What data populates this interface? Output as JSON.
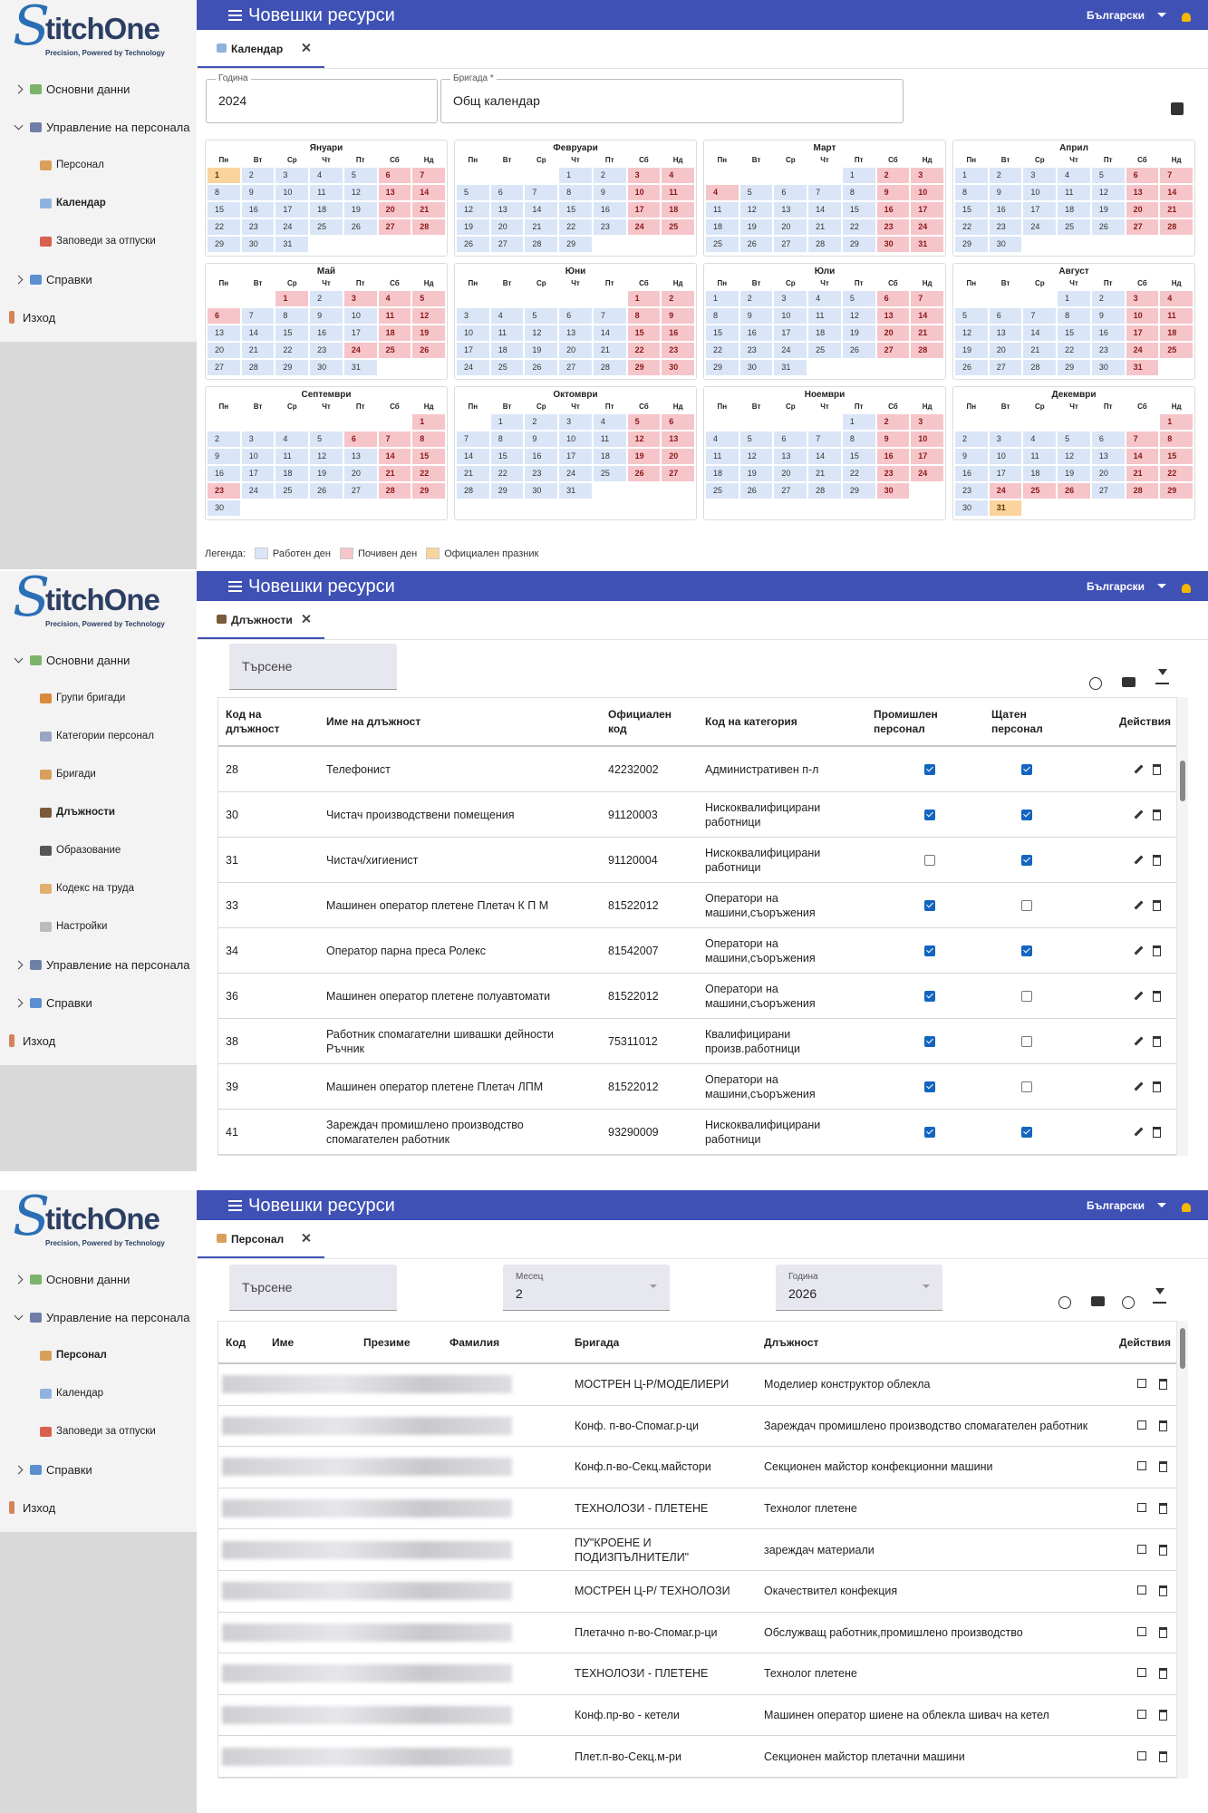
{
  "app": {
    "logo_initial": "S",
    "logo_rest": "titchOne",
    "tagline": "Precision, Powered by Technology",
    "header_title": "Човешки ресурси",
    "language": "Български",
    "search": "Търсене"
  },
  "calendar_screen": {
    "sidebar": [
      {
        "label": "Основни данни",
        "level": 0,
        "state": "collapsed",
        "active": false,
        "icon": "#7bb36b"
      },
      {
        "label": "Управление на персонала",
        "level": 0,
        "state": "expanded",
        "active": false,
        "icon": "#6f7fa8"
      },
      {
        "label": "Персонал",
        "level": 1,
        "state": "none",
        "active": false,
        "icon": "#d9a05b"
      },
      {
        "label": "Календар",
        "level": 1,
        "state": "none",
        "active": true,
        "icon": "#8fb3de"
      },
      {
        "label": "Заповеди за отпуски",
        "level": 1,
        "state": "none",
        "active": false,
        "icon": "#d9604f"
      },
      {
        "label": "Справки",
        "level": 0,
        "state": "collapsed",
        "active": false,
        "icon": "#5c8fd1"
      },
      {
        "label": "Изход",
        "level": 0,
        "state": "none",
        "active": false,
        "icon": "#d7835a"
      }
    ],
    "tab": "Календар",
    "tab_icon": "#8fb3de",
    "year_label": "Година",
    "year": "2024",
    "brigade_label": "Бригада *",
    "brigade": "Общ календар",
    "weekdays": [
      "Пн",
      "Вт",
      "Ср",
      "Чт",
      "Пт",
      "Сб",
      "Нд"
    ],
    "months": [
      {
        "name": "Януари",
        "weeks": [
          [
            1,
            2,
            3,
            4,
            5,
            6,
            7
          ],
          [
            8,
            9,
            10,
            11,
            12,
            13,
            14
          ],
          [
            15,
            16,
            17,
            18,
            19,
            20,
            21
          ],
          [
            22,
            23,
            24,
            25,
            26,
            27,
            28
          ],
          [
            29,
            30,
            31
          ]
        ],
        "off": [],
        "holidays": [
          1
        ]
      },
      {
        "name": "Февруари",
        "weeks": [
          [
            null,
            null,
            null,
            1,
            2,
            3,
            4
          ],
          [
            5,
            6,
            7,
            8,
            9,
            10,
            11
          ],
          [
            12,
            13,
            14,
            15,
            16,
            17,
            18
          ],
          [
            19,
            20,
            21,
            22,
            23,
            24,
            25
          ],
          [
            26,
            27,
            28,
            29
          ]
        ],
        "off": [],
        "holidays": []
      },
      {
        "name": "Март",
        "weeks": [
          [
            null,
            null,
            null,
            null,
            1,
            2,
            3
          ],
          [
            4,
            5,
            6,
            7,
            8,
            9,
            10
          ],
          [
            11,
            12,
            13,
            14,
            15,
            16,
            17
          ],
          [
            18,
            19,
            20,
            21,
            22,
            23,
            24
          ],
          [
            25,
            26,
            27,
            28,
            29,
            30,
            31
          ]
        ],
        "off": [
          4
        ],
        "holidays": []
      },
      {
        "name": "Април",
        "weeks": [
          [
            1,
            2,
            3,
            4,
            5,
            6,
            7
          ],
          [
            8,
            9,
            10,
            11,
            12,
            13,
            14
          ],
          [
            15,
            16,
            17,
            18,
            19,
            20,
            21
          ],
          [
            22,
            23,
            24,
            25,
            26,
            27,
            28
          ],
          [
            29,
            30
          ]
        ],
        "off": [],
        "holidays": []
      },
      {
        "name": "Май",
        "weeks": [
          [
            null,
            null,
            1,
            2,
            3,
            4,
            5
          ],
          [
            6,
            7,
            8,
            9,
            10,
            11,
            12
          ],
          [
            13,
            14,
            15,
            16,
            17,
            18,
            19
          ],
          [
            20,
            21,
            22,
            23,
            24,
            25,
            26
          ],
          [
            27,
            28,
            29,
            30,
            31
          ]
        ],
        "off": [
          1,
          3,
          6,
          24
        ],
        "holidays": []
      },
      {
        "name": "Юни",
        "weeks": [
          [
            null,
            null,
            null,
            null,
            null,
            1,
            2
          ],
          [
            3,
            4,
            5,
            6,
            7,
            8,
            9
          ],
          [
            10,
            11,
            12,
            13,
            14,
            15,
            16
          ],
          [
            17,
            18,
            19,
            20,
            21,
            22,
            23
          ],
          [
            24,
            25,
            26,
            27,
            28,
            29,
            30
          ]
        ],
        "off": [],
        "holidays": []
      },
      {
        "name": "Юли",
        "weeks": [
          [
            1,
            2,
            3,
            4,
            5,
            6,
            7
          ],
          [
            8,
            9,
            10,
            11,
            12,
            13,
            14
          ],
          [
            15,
            16,
            17,
            18,
            19,
            20,
            21
          ],
          [
            22,
            23,
            24,
            25,
            26,
            27,
            28
          ],
          [
            29,
            30,
            31
          ]
        ],
        "off": [],
        "holidays": []
      },
      {
        "name": "Август",
        "weeks": [
          [
            null,
            null,
            null,
            1,
            2,
            3,
            4
          ],
          [
            5,
            6,
            7,
            8,
            9,
            10,
            11
          ],
          [
            12,
            13,
            14,
            15,
            16,
            17,
            18
          ],
          [
            19,
            20,
            21,
            22,
            23,
            24,
            25
          ],
          [
            26,
            27,
            28,
            29,
            30,
            31
          ]
        ],
        "off": [],
        "holidays": []
      },
      {
        "name": "Септември",
        "weeks": [
          [
            null,
            null,
            null,
            null,
            null,
            null,
            1
          ],
          [
            2,
            3,
            4,
            5,
            6,
            7,
            8
          ],
          [
            9,
            10,
            11,
            12,
            13,
            14,
            15
          ],
          [
            16,
            17,
            18,
            19,
            20,
            21,
            22
          ],
          [
            23,
            24,
            25,
            26,
            27,
            28,
            29
          ],
          [
            30
          ]
        ],
        "off": [
          6,
          23
        ],
        "holidays": []
      },
      {
        "name": "Октомври",
        "weeks": [
          [
            null,
            1,
            2,
            3,
            4,
            5,
            6
          ],
          [
            7,
            8,
            9,
            10,
            11,
            12,
            13
          ],
          [
            14,
            15,
            16,
            17,
            18,
            19,
            20
          ],
          [
            21,
            22,
            23,
            24,
            25,
            26,
            27
          ],
          [
            28,
            29,
            30,
            31
          ]
        ],
        "off": [],
        "holidays": []
      },
      {
        "name": "Ноември",
        "weeks": [
          [
            null,
            null,
            null,
            null,
            1,
            2,
            3
          ],
          [
            4,
            5,
            6,
            7,
            8,
            9,
            10
          ],
          [
            11,
            12,
            13,
            14,
            15,
            16,
            17
          ],
          [
            18,
            19,
            20,
            21,
            22,
            23,
            24
          ],
          [
            25,
            26,
            27,
            28,
            29,
            30
          ]
        ],
        "off": [],
        "holidays": []
      },
      {
        "name": "Декември",
        "weeks": [
          [
            null,
            null,
            null,
            null,
            null,
            null,
            1
          ],
          [
            2,
            3,
            4,
            5,
            6,
            7,
            8
          ],
          [
            9,
            10,
            11,
            12,
            13,
            14,
            15
          ],
          [
            16,
            17,
            18,
            19,
            20,
            21,
            22
          ],
          [
            23,
            24,
            25,
            26,
            27,
            28,
            29
          ],
          [
            30,
            31
          ]
        ],
        "off": [
          24,
          25,
          26
        ],
        "holidays": [
          31
        ]
      }
    ],
    "legend_label": "Легенда:",
    "legend": [
      {
        "label": "Работен ден",
        "color": "#dae6f7"
      },
      {
        "label": "Почивен ден",
        "color": "#f6c5c9"
      },
      {
        "label": "Официален празник",
        "color": "#fbd39c"
      }
    ]
  },
  "positions_screen": {
    "sidebar": [
      {
        "label": "Основни данни",
        "level": 0,
        "state": "expanded",
        "active": false,
        "icon": "#7bb36b"
      },
      {
        "label": "Групи бригади",
        "level": 1,
        "state": "none",
        "active": false,
        "icon": "#d98a3d"
      },
      {
        "label": "Категории персонал",
        "level": 1,
        "state": "none",
        "active": false,
        "icon": "#9aa6c4"
      },
      {
        "label": "Бригади",
        "level": 1,
        "state": "none",
        "active": false,
        "icon": "#d9a05b"
      },
      {
        "label": "Длъжности",
        "level": 1,
        "state": "none",
        "active": true,
        "icon": "#7a5a3a"
      },
      {
        "label": "Образование",
        "level": 1,
        "state": "none",
        "active": false,
        "icon": "#555555"
      },
      {
        "label": "Кодекс на труда",
        "level": 1,
        "state": "none",
        "active": false,
        "icon": "#e0b070"
      },
      {
        "label": "Настройки",
        "level": 1,
        "state": "none",
        "active": false,
        "icon": "#bbbbbb"
      },
      {
        "label": "Управление на персонала",
        "level": 0,
        "state": "collapsed",
        "active": false,
        "icon": "#6f7fa8"
      },
      {
        "label": "Справки",
        "level": 0,
        "state": "collapsed",
        "active": false,
        "icon": "#5c8fd1"
      },
      {
        "label": "Изход",
        "level": 0,
        "state": "none",
        "active": false,
        "icon": "#d7835a"
      }
    ],
    "tab": "Длъжности",
    "tab_icon": "#7a5a3a",
    "columns": [
      "Код на длъжност",
      "Име на длъжност",
      "Официален код",
      "Код на категория",
      "Промишлен персонал",
      "Щатен персонал",
      "Действия"
    ],
    "rows": [
      {
        "code": "28",
        "name": "Телефонист",
        "official_code": "42232002",
        "category": "Административен п-л",
        "industrial": true,
        "staff": true
      },
      {
        "code": "30",
        "name": "Чистач производствени помещения",
        "official_code": "91120003",
        "category": "Нискоквалифицирани работници",
        "industrial": true,
        "staff": true
      },
      {
        "code": "31",
        "name": "Чистач/хигиенист",
        "official_code": "91120004",
        "category": "Нискоквалифицирани работници",
        "industrial": false,
        "staff": true
      },
      {
        "code": "33",
        "name": "Машинен оператор плетене Плетач К П М",
        "official_code": "81522012",
        "category": "Оператори на машини,съоръжения",
        "industrial": true,
        "staff": false
      },
      {
        "code": "34",
        "name": "Оператор парна преса Ролекс",
        "official_code": "81542007",
        "category": "Оператори на машини,съоръжения",
        "industrial": true,
        "staff": true
      },
      {
        "code": "36",
        "name": "Машинен оператор плетене полуавтомати",
        "official_code": "81522012",
        "category": "Оператори на машини,съоръжения",
        "industrial": true,
        "staff": false
      },
      {
        "code": "38",
        "name": "Работник спомагателни шивашки дейности Ръчник",
        "official_code": "75311012",
        "category": "Квалифицирани произв.работници",
        "industrial": true,
        "staff": false
      },
      {
        "code": "39",
        "name": "Машинен оператор плетене Плетач ЛПМ",
        "official_code": "81522012",
        "category": "Оператори на машини,съоръжения",
        "industrial": true,
        "staff": false
      },
      {
        "code": "41",
        "name": "Зареждач промишлено производство спомагателен работник",
        "official_code": "93290009",
        "category": "Нискоквалифицирани работници",
        "industrial": true,
        "staff": true
      }
    ]
  },
  "staff_screen": {
    "sidebar": [
      {
        "label": "Основни данни",
        "level": 0,
        "state": "collapsed",
        "active": false,
        "icon": "#7bb36b"
      },
      {
        "label": "Управление на персонала",
        "level": 0,
        "state": "expanded",
        "active": false,
        "icon": "#6f7fa8"
      },
      {
        "label": "Персонал",
        "level": 1,
        "state": "none",
        "active": true,
        "icon": "#d9a05b"
      },
      {
        "label": "Календар",
        "level": 1,
        "state": "none",
        "active": false,
        "icon": "#8fb3de"
      },
      {
        "label": "Заповеди за отпуски",
        "level": 1,
        "state": "none",
        "active": false,
        "icon": "#d9604f"
      },
      {
        "label": "Справки",
        "level": 0,
        "state": "collapsed",
        "active": false,
        "icon": "#5c8fd1"
      },
      {
        "label": "Изход",
        "level": 0,
        "state": "none",
        "active": false,
        "icon": "#d7835a"
      }
    ],
    "tab": "Персонал",
    "tab_icon": "#d9a05b",
    "month_label": "Месец",
    "month": "2",
    "year_label": "Година",
    "year": "2026",
    "columns": [
      "Код",
      "Име",
      "Презиме",
      "Фамилия",
      "Бригада",
      "Длъжност",
      "Действия"
    ],
    "rows": [
      {
        "brigade": "МОСТРЕН Ц-Р/МОДЕЛИЕРИ",
        "position": "Моделиер конструктор облекла"
      },
      {
        "brigade": "Конф. п-во-Спомаг.р-ци",
        "position": "Зареждач промишлено производство спомагателен работник"
      },
      {
        "brigade": "Конф.п-во-Секц.майстори",
        "position": "Секционен майстор конфекционни машини"
      },
      {
        "brigade": "ТЕХНОЛОЗИ - ПЛЕТЕНЕ",
        "position": "Технолог плетене"
      },
      {
        "brigade": "ПУ\"КРОЕНЕ И ПОДИЗПЪЛНИТЕЛИ\"",
        "position": "зареждач материали"
      },
      {
        "brigade": "МОСТРЕН Ц-Р/ ТЕХНОЛОЗИ",
        "position": "Окачествител конфекция"
      },
      {
        "brigade": "Плетачно п-во-Спомаг.р-ци",
        "position": "Обслужващ работник,промишлено производство"
      },
      {
        "brigade": "ТЕХНОЛОЗИ - ПЛЕТЕНЕ",
        "position": "Технолог плетене"
      },
      {
        "brigade": "Конф.пр-во - кетели",
        "position": "Машинен оператор шиене на облекла шивач на кетел"
      },
      {
        "brigade": "Плет.п-во-Секц.м-ри",
        "position": "Секционен майстор плетачни машини"
      }
    ]
  }
}
